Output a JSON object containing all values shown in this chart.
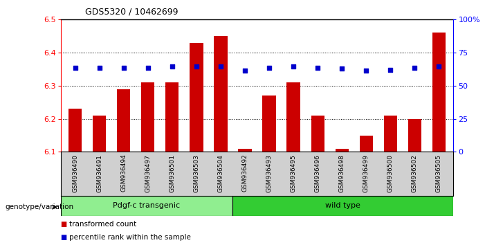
{
  "title": "GDS5320 / 10462699",
  "samples": [
    "GSM936490",
    "GSM936491",
    "GSM936494",
    "GSM936497",
    "GSM936501",
    "GSM936503",
    "GSM936504",
    "GSM936492",
    "GSM936493",
    "GSM936495",
    "GSM936496",
    "GSM936498",
    "GSM936499",
    "GSM936500",
    "GSM936502",
    "GSM936505"
  ],
  "transformed_count": [
    6.23,
    6.21,
    6.29,
    6.31,
    6.31,
    6.43,
    6.45,
    6.11,
    6.27,
    6.31,
    6.21,
    6.11,
    6.15,
    6.21,
    6.2,
    6.46
  ],
  "percentile_rank_left": [
    6.355,
    6.355,
    6.355,
    6.355,
    6.358,
    6.358,
    6.358,
    6.345,
    6.355,
    6.358,
    6.355,
    6.352,
    6.345,
    6.348,
    6.355,
    6.358
  ],
  "ylim_left": [
    6.1,
    6.5
  ],
  "ylim_right": [
    0,
    100
  ],
  "yticks_left": [
    6.1,
    6.2,
    6.3,
    6.4,
    6.5
  ],
  "yticks_right": [
    0,
    25,
    50,
    75,
    100
  ],
  "ytick_labels_right": [
    "0",
    "25",
    "50",
    "75",
    "100%"
  ],
  "group1_label": "Pdgf-c transgenic",
  "group2_label": "wild type",
  "group1_count": 7,
  "group2_count": 9,
  "bar_color": "#cc0000",
  "dot_color": "#0000cc",
  "bar_bottom": 6.1,
  "group1_bg": "#90ee90",
  "group2_bg": "#33cc33",
  "tick_area_bg": "#d0d0d0",
  "legend_bar_label": "transformed count",
  "legend_dot_label": "percentile rank within the sample",
  "xlabel_area": "genotype/variation"
}
